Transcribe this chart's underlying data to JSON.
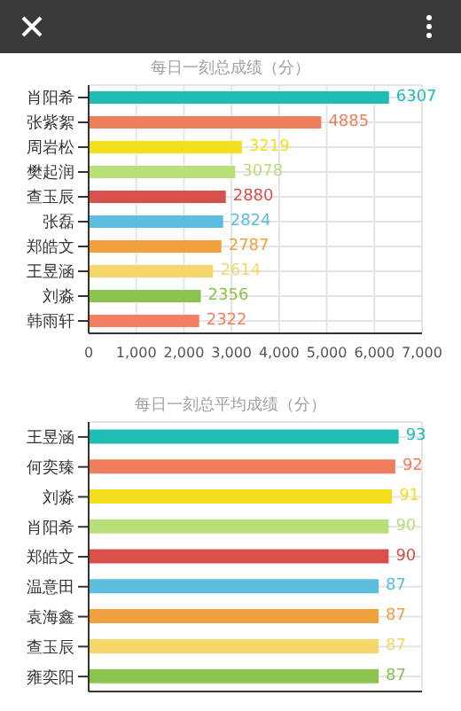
{
  "chart_data": [
    {
      "type": "bar",
      "orientation": "horizontal",
      "title": "每日一刻总成绩（分）",
      "categories": [
        "肖阳希",
        "张紫絮",
        "周岩松",
        "樊起润",
        "查玉辰",
        "张磊",
        "郑皓文",
        "王昱涵",
        "刘淼",
        "韩雨轩"
      ],
      "values": [
        6307,
        4885,
        3219,
        3078,
        2880,
        2824,
        2787,
        2614,
        2356,
        2322
      ],
      "colors": [
        "#1fbcb6",
        "#ef7f5c",
        "#f2df1c",
        "#b8df7a",
        "#d8504a",
        "#5bbede",
        "#f0a03c",
        "#f6d66a",
        "#8cc34e",
        "#f47e62"
      ],
      "xlim": [
        0,
        7000
      ],
      "xticks": [
        {
          "value": 0,
          "label": "0"
        },
        {
          "value": 1000,
          "label": "1,000"
        },
        {
          "value": 2000,
          "label": "2,000"
        },
        {
          "value": 3000,
          "label": "3,000"
        },
        {
          "value": 4000,
          "label": "4,000"
        },
        {
          "value": 5000,
          "label": "5,000"
        },
        {
          "value": 6000,
          "label": "6,000"
        },
        {
          "value": 7000,
          "label": "7,000"
        }
      ],
      "grid": true,
      "data_labels": true
    },
    {
      "type": "bar",
      "orientation": "horizontal",
      "title": "每日一刻总平均成绩（分）",
      "categories": [
        "王昱涵",
        "何奕臻",
        "刘淼",
        "肖阳希",
        "郑皓文",
        "温意田",
        "袁海鑫",
        "查玉辰",
        "雍奕阳"
      ],
      "values": [
        93,
        92,
        91,
        90,
        90,
        87,
        87,
        87,
        87
      ],
      "colors": [
        "#1fbcb6",
        "#ef7f5c",
        "#f2df1c",
        "#b8df7a",
        "#d8504a",
        "#5bbede",
        "#f0a03c",
        "#f6d66a",
        "#8cc34e"
      ],
      "xlim": [
        0,
        100
      ],
      "grid": true,
      "data_labels": true,
      "tick_labels": "y"
    }
  ]
}
